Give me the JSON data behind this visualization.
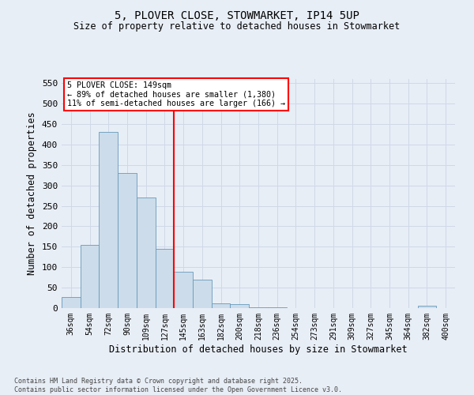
{
  "title1": "5, PLOVER CLOSE, STOWMARKET, IP14 5UP",
  "title2": "Size of property relative to detached houses in Stowmarket",
  "xlabel": "Distribution of detached houses by size in Stowmarket",
  "ylabel": "Number of detached properties",
  "bar_labels": [
    "36sqm",
    "54sqm",
    "72sqm",
    "90sqm",
    "109sqm",
    "127sqm",
    "145sqm",
    "163sqm",
    "182sqm",
    "200sqm",
    "218sqm",
    "236sqm",
    "254sqm",
    "273sqm",
    "291sqm",
    "309sqm",
    "327sqm",
    "345sqm",
    "364sqm",
    "382sqm",
    "400sqm"
  ],
  "bar_values": [
    28,
    155,
    430,
    330,
    270,
    145,
    88,
    70,
    12,
    9,
    2,
    1,
    0,
    0,
    0,
    0,
    0,
    0,
    0,
    5,
    0
  ],
  "bar_color": "#ccdcea",
  "bar_edgecolor": "#6699bb",
  "vline_x_index": 6,
  "vline_color": "red",
  "annotation_title": "5 PLOVER CLOSE: 149sqm",
  "annotation_line1": "← 89% of detached houses are smaller (1,380)",
  "annotation_line2": "11% of semi-detached houses are larger (166) →",
  "ylim": [
    0,
    560
  ],
  "yticks": [
    0,
    50,
    100,
    150,
    200,
    250,
    300,
    350,
    400,
    450,
    500,
    550
  ],
  "footnote1": "Contains HM Land Registry data © Crown copyright and database right 2025.",
  "footnote2": "Contains public sector information licensed under the Open Government Licence v3.0.",
  "bg_color": "#e8eef6",
  "annotation_box_color": "white",
  "annotation_box_edgecolor": "red",
  "grid_color": "#d0d8e8"
}
